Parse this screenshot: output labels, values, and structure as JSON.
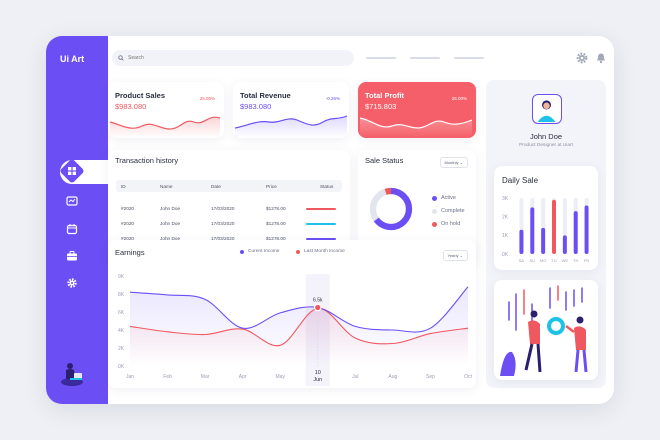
{
  "brand": "Ui Art",
  "search": {
    "placeholder": "Search"
  },
  "kpis": [
    {
      "title": "Product Sales",
      "value": "$983.080",
      "change": "25.00%"
    },
    {
      "title": "Total Revenue",
      "value": "$983.080",
      "change": "-0.26%"
    },
    {
      "title": "Total Profit",
      "value": "$715.803",
      "change": "25.00%"
    }
  ],
  "transactions": {
    "title": "Transaction history",
    "columns": [
      "ID",
      "Name",
      "Date",
      "Price",
      "Status"
    ],
    "rows": [
      {
        "id": "#2020",
        "name": "John Doe",
        "date": "17/03/2020",
        "price": "$1278.00",
        "status_color": "#f0585f"
      },
      {
        "id": "#2020",
        "name": "John Doe",
        "date": "17/03/2020",
        "price": "$1278.00",
        "status_color": "#1ec2e8"
      },
      {
        "id": "#2020",
        "name": "John Doe",
        "date": "17/03/2020",
        "price": "$1278.00",
        "status_color": "#6b4ff5"
      }
    ]
  },
  "sale_status": {
    "title": "Sale Status",
    "filter": "Monthly",
    "legend": [
      {
        "label": "Active",
        "color": "#6b4ff5"
      },
      {
        "label": "Complete",
        "color": "#e3e5ec"
      },
      {
        "label": "On hold",
        "color": "#f0585f"
      }
    ]
  },
  "earnings": {
    "title": "Earnings",
    "filter": "Yearly",
    "legend": [
      {
        "label": "Curent Income",
        "color": "#6b4ff5"
      },
      {
        "label": "Last Month Income",
        "color": "#f0585f"
      }
    ],
    "highlight": {
      "value": "6.5k",
      "day": "10",
      "month": "Jun"
    }
  },
  "profile": {
    "name": "John Doe",
    "role": "Product Designer at Uiart"
  },
  "daily_sale": {
    "title": "Daily Sale"
  },
  "chart_data": [
    {
      "type": "line",
      "title": "Earnings",
      "x": [
        "Jan",
        "Feb",
        "Mar",
        "Apr",
        "May",
        "Jun",
        "Jul",
        "Aug",
        "Sep",
        "Oct"
      ],
      "ylabels": [
        "0K",
        "2K",
        "4K",
        "6K",
        "8K",
        "9K"
      ],
      "series": [
        {
          "name": "Curent Income",
          "values": [
            8.2,
            7.9,
            7.4,
            4.2,
            5.9,
            6.5,
            4.4,
            4.0,
            4.2,
            8.8
          ]
        },
        {
          "name": "Last Month Income",
          "values": [
            4.4,
            3.8,
            3.5,
            4.1,
            2.3,
            6.4,
            3.1,
            2.5,
            3.6,
            4.2
          ]
        }
      ]
    },
    {
      "type": "bar",
      "title": "Daily Sale",
      "categories": [
        "SA",
        "SU",
        "MO",
        "TU",
        "WE",
        "TH",
        "FR"
      ],
      "ylabels": [
        "0K",
        "1K",
        "2K",
        "3K"
      ],
      "series": [
        {
          "name": "",
          "values": [
            1.3,
            2.5,
            1.4,
            2.9,
            1.0,
            2.3,
            2.6
          ]
        }
      ],
      "bar_colors": [
        "#6b4ff5",
        "#6b4ff5",
        "#6b4ff5",
        "#f0585f",
        "#6b4ff5",
        "#6b4ff5",
        "#6b4ff5"
      ]
    },
    {
      "type": "pie",
      "title": "Sale Status",
      "values": [
        65,
        30,
        5
      ],
      "labels": [
        "Active",
        "Complete",
        "On hold"
      ]
    }
  ]
}
